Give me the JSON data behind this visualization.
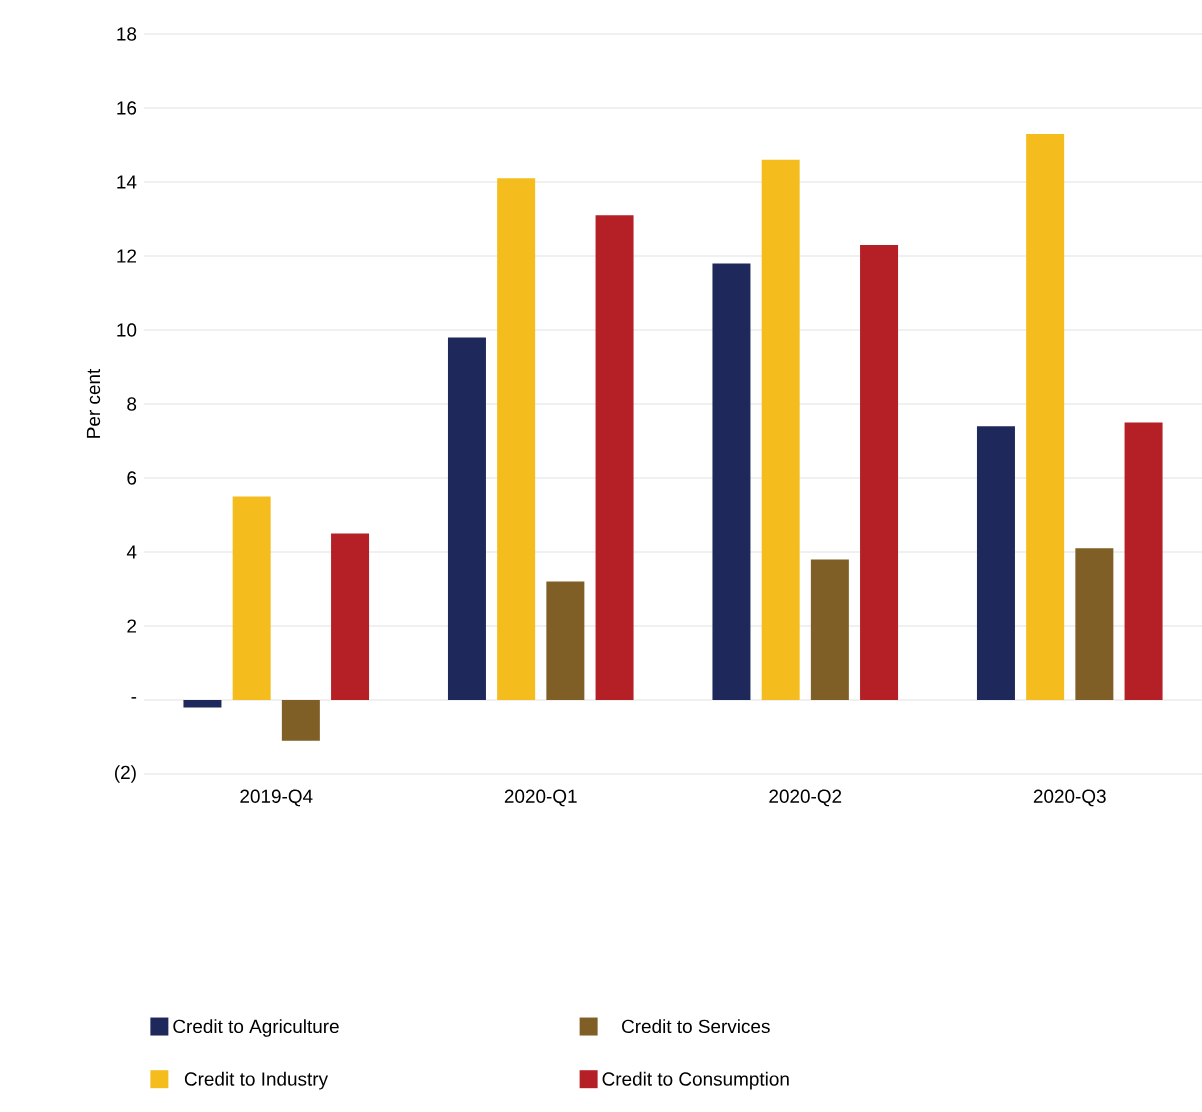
{
  "chart_data": {
    "type": "bar",
    "ylabel": "Per cent",
    "categories": [
      "2019-Q4",
      "2020-Q1",
      "2020-Q2",
      "2020-Q3"
    ],
    "series": [
      {
        "name": "Credit to Agriculture",
        "color": "#1f285a",
        "values": [
          -0.2,
          9.8,
          11.8,
          7.4
        ]
      },
      {
        "name": "Credit to Industry",
        "color": "#f5bc1e",
        "values": [
          5.5,
          14.1,
          14.6,
          15.3
        ]
      },
      {
        "name": "Credit to Services",
        "color": "#7f5f26",
        "values": [
          -1.1,
          3.2,
          3.8,
          4.1
        ]
      },
      {
        "name": "Credit to Consumption",
        "color": "#b51f26",
        "values": [
          4.5,
          13.1,
          12.3,
          7.5
        ]
      }
    ],
    "ylim": [
      -2,
      18
    ],
    "yticks": [
      {
        "value": -2,
        "label": "(2)"
      },
      {
        "value": 0,
        "label": "-"
      },
      2,
      4,
      6,
      8,
      10,
      12,
      14,
      16,
      18
    ],
    "grid": "y",
    "legend": "bottom"
  }
}
